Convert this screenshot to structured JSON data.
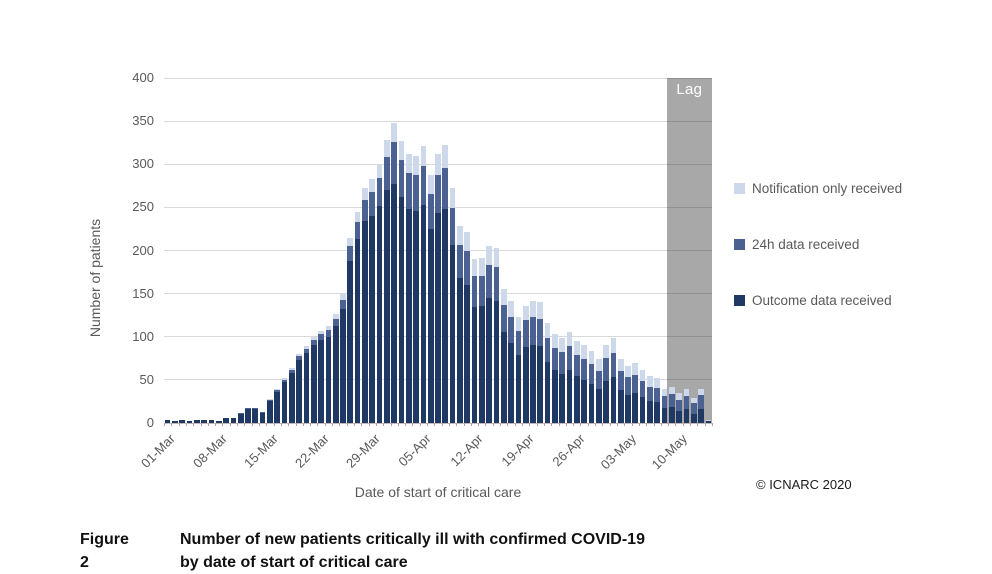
{
  "figure": {
    "caption_label": "Figure 2",
    "caption_line1": "Number of new patients critically ill with confirmed COVID-19",
    "caption_line2": "by date of start of critical care",
    "copyright": "© ICNARC 2020"
  },
  "colors": {
    "outcome": "#1f3864",
    "h24": "#4a6191",
    "notification": "#cdd9ea",
    "lag_band": "#a8a8a8",
    "axis_text": "#595959",
    "tick": "#c79999"
  },
  "chart_data": {
    "type": "bar",
    "stacked": true,
    "title": "",
    "xlabel": "Date of start of critical care",
    "ylabel": "Number of patients",
    "ylim": [
      0,
      400
    ],
    "ytick_step": 50,
    "grid": true,
    "legend_position": "right",
    "lag_label": "Lag",
    "lag_start_index": 69,
    "xtick_label_every": 7,
    "categories": [
      "01-Mar",
      "02-Mar",
      "03-Mar",
      "04-Mar",
      "05-Mar",
      "06-Mar",
      "07-Mar",
      "08-Mar",
      "09-Mar",
      "10-Mar",
      "11-Mar",
      "12-Mar",
      "13-Mar",
      "14-Mar",
      "15-Mar",
      "16-Mar",
      "17-Mar",
      "18-Mar",
      "19-Mar",
      "20-Mar",
      "21-Mar",
      "22-Mar",
      "23-Mar",
      "24-Mar",
      "25-Mar",
      "26-Mar",
      "27-Mar",
      "28-Mar",
      "29-Mar",
      "30-Mar",
      "31-Mar",
      "01-Apr",
      "02-Apr",
      "03-Apr",
      "04-Apr",
      "05-Apr",
      "06-Apr",
      "07-Apr",
      "08-Apr",
      "09-Apr",
      "10-Apr",
      "11-Apr",
      "12-Apr",
      "13-Apr",
      "14-Apr",
      "15-Apr",
      "16-Apr",
      "17-Apr",
      "18-Apr",
      "19-Apr",
      "20-Apr",
      "21-Apr",
      "22-Apr",
      "23-Apr",
      "24-Apr",
      "25-Apr",
      "26-Apr",
      "27-Apr",
      "28-Apr",
      "29-Apr",
      "30-Apr",
      "01-May",
      "02-May",
      "03-May",
      "04-May",
      "05-May",
      "06-May",
      "07-May",
      "08-May",
      "09-May",
      "10-May",
      "11-May",
      "12-May",
      "13-May",
      "14-May"
    ],
    "series": [
      {
        "name": "Outcome data received",
        "color": "#1f3864",
        "values": [
          3,
          2,
          4,
          2,
          4,
          3,
          3,
          2,
          6,
          6,
          11,
          16,
          16,
          12,
          26,
          36,
          47,
          58,
          73,
          81,
          90,
          96,
          100,
          112,
          132,
          188,
          213,
          234,
          240,
          252,
          270,
          277,
          262,
          248,
          246,
          253,
          225,
          243,
          248,
          206,
          168,
          160,
          135,
          136,
          145,
          142,
          105,
          93,
          79,
          88,
          91,
          89,
          71,
          61,
          57,
          62,
          54,
          50,
          45,
          39,
          49,
          53,
          38,
          33,
          35,
          30,
          25,
          24,
          17,
          19,
          14,
          16,
          11,
          16,
          2
        ]
      },
      {
        "name": "24h data received",
        "color": "#4a6191",
        "values": [
          0,
          0,
          0,
          0,
          0,
          0,
          0,
          0,
          0,
          0,
          1,
          1,
          1,
          1,
          1,
          2,
          3,
          4,
          5,
          5,
          6,
          7,
          8,
          9,
          11,
          17,
          20,
          24,
          28,
          32,
          38,
          49,
          43,
          42,
          42,
          45,
          41,
          45,
          48,
          43,
          38,
          39,
          35,
          35,
          38,
          39,
          32,
          30,
          28,
          31,
          32,
          32,
          28,
          26,
          25,
          27,
          25,
          24,
          23,
          21,
          26,
          28,
          22,
          20,
          21,
          19,
          17,
          17,
          14,
          15,
          13,
          15,
          12,
          16,
          1
        ]
      },
      {
        "name": "Notification only received",
        "color": "#cdd9ea",
        "values": [
          0,
          0,
          0,
          0,
          0,
          0,
          0,
          0,
          0,
          0,
          0,
          0,
          0,
          0,
          1,
          1,
          2,
          2,
          2,
          3,
          4,
          4,
          4,
          5,
          7,
          10,
          12,
          14,
          15,
          16,
          20,
          22,
          22,
          22,
          22,
          23,
          22,
          24,
          26,
          24,
          22,
          23,
          20,
          20,
          22,
          22,
          18,
          18,
          16,
          17,
          18,
          19,
          17,
          16,
          16,
          17,
          16,
          16,
          15,
          14,
          16,
          18,
          14,
          13,
          14,
          13,
          12,
          11,
          8,
          8,
          8,
          8,
          6,
          7,
          1
        ]
      }
    ]
  }
}
